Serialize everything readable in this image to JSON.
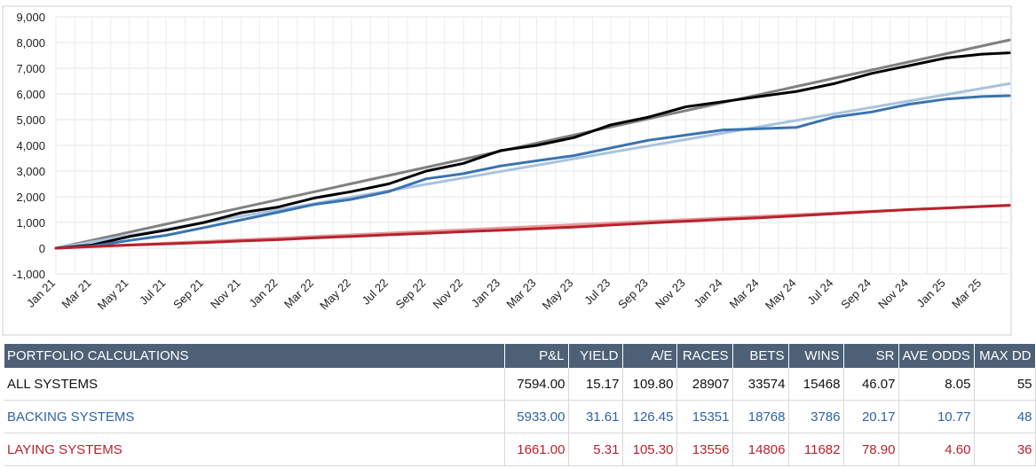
{
  "chart_data": {
    "type": "line",
    "title": "",
    "xlabel": "",
    "ylabel": "",
    "ylim": [
      -1000,
      9000
    ],
    "yticks": [
      -1000,
      0,
      1000,
      2000,
      3000,
      4000,
      5000,
      6000,
      7000,
      8000,
      9000
    ],
    "ytick_labels": [
      "-1,000",
      "0",
      "1,000",
      "2,000",
      "3,000",
      "4,000",
      "5,000",
      "6,000",
      "7,000",
      "8,000",
      "9,000"
    ],
    "xlim": [
      "2021-01-01",
      "2025-04-15"
    ],
    "xtick_labels": [
      "Jan 21",
      "Mar 21",
      "May 21",
      "Jul 21",
      "Sep 21",
      "Nov 21",
      "Jan 22",
      "Mar 22",
      "May 22",
      "Jul 22",
      "Sep 22",
      "Nov 22",
      "Jan 23",
      "Mar 23",
      "May 23",
      "Jul 23",
      "Sep 23",
      "Nov 23",
      "Jan 24",
      "Mar 24",
      "May 24",
      "Jul 24",
      "Sep 24",
      "Nov 24",
      "Jan 25",
      "Mar 25"
    ],
    "xtick_dates": [
      "2021-01-01",
      "2021-03-01",
      "2021-05-01",
      "2021-07-01",
      "2021-09-01",
      "2021-11-01",
      "2022-01-01",
      "2022-03-01",
      "2022-05-01",
      "2022-07-01",
      "2022-09-01",
      "2022-11-01",
      "2023-01-01",
      "2023-03-01",
      "2023-05-01",
      "2023-07-01",
      "2023-09-01",
      "2023-11-01",
      "2024-01-01",
      "2024-03-01",
      "2024-05-01",
      "2024-07-01",
      "2024-09-01",
      "2024-11-01",
      "2025-01-01",
      "2025-03-01"
    ],
    "grid": true,
    "legend": "none",
    "series": [
      {
        "color": "#808080",
        "role": "trend",
        "x": [
          "2021-01-01",
          "2025-04-15"
        ],
        "y": [
          0,
          8100
        ]
      },
      {
        "color": "#a9c3df",
        "role": "trend",
        "x": [
          "2021-01-01",
          "2025-04-15"
        ],
        "y": [
          0,
          6400
        ]
      },
      {
        "color": "#e59b9b",
        "role": "trend",
        "x": [
          "2021-01-01",
          "2025-04-15"
        ],
        "y": [
          0,
          1680
        ]
      },
      {
        "color": "#000000",
        "role": "actual",
        "x": [
          "2021-01-01",
          "2021-03-01",
          "2021-05-01",
          "2021-07-01",
          "2021-09-01",
          "2021-11-01",
          "2022-01-01",
          "2022-03-01",
          "2022-05-01",
          "2022-07-01",
          "2022-09-01",
          "2022-11-01",
          "2023-01-01",
          "2023-03-01",
          "2023-05-01",
          "2023-07-01",
          "2023-09-01",
          "2023-11-01",
          "2024-01-01",
          "2024-03-01",
          "2024-05-01",
          "2024-07-01",
          "2024-09-01",
          "2024-11-01",
          "2025-01-01",
          "2025-03-01",
          "2025-04-15"
        ],
        "y": [
          0,
          120,
          450,
          700,
          1000,
          1380,
          1600,
          1950,
          2200,
          2500,
          3000,
          3300,
          3800,
          4000,
          4300,
          4800,
          5100,
          5500,
          5700,
          5900,
          6100,
          6400,
          6800,
          7100,
          7400,
          7550,
          7600
        ]
      },
      {
        "color": "#3a73b0",
        "role": "actual",
        "x": [
          "2021-01-01",
          "2021-03-01",
          "2021-05-01",
          "2021-07-01",
          "2021-09-01",
          "2021-11-01",
          "2022-01-01",
          "2022-03-01",
          "2022-05-01",
          "2022-07-01",
          "2022-09-01",
          "2022-11-01",
          "2023-01-01",
          "2023-03-01",
          "2023-05-01",
          "2023-07-01",
          "2023-09-01",
          "2023-11-01",
          "2024-01-01",
          "2024-03-01",
          "2024-05-01",
          "2024-07-01",
          "2024-09-01",
          "2024-11-01",
          "2025-01-01",
          "2025-03-01",
          "2025-04-15"
        ],
        "y": [
          0,
          80,
          300,
          500,
          800,
          1100,
          1400,
          1700,
          1900,
          2200,
          2700,
          2900,
          3200,
          3400,
          3600,
          3900,
          4200,
          4400,
          4600,
          4650,
          4700,
          5100,
          5300,
          5600,
          5800,
          5900,
          5930
        ]
      },
      {
        "color": "#b8222d",
        "role": "actual",
        "x": [
          "2021-01-01",
          "2021-03-01",
          "2021-05-01",
          "2021-07-01",
          "2021-09-01",
          "2021-11-01",
          "2022-01-01",
          "2022-03-01",
          "2022-05-01",
          "2022-07-01",
          "2022-09-01",
          "2022-11-01",
          "2023-01-01",
          "2023-03-01",
          "2023-05-01",
          "2023-07-01",
          "2023-09-01",
          "2023-11-01",
          "2024-01-01",
          "2024-03-01",
          "2024-05-01",
          "2024-07-01",
          "2024-09-01",
          "2024-11-01",
          "2025-01-01",
          "2025-03-01",
          "2025-04-15"
        ],
        "y": [
          0,
          60,
          120,
          170,
          220,
          280,
          330,
          400,
          460,
          520,
          580,
          640,
          700,
          760,
          820,
          900,
          980,
          1050,
          1120,
          1180,
          1260,
          1340,
          1420,
          1500,
          1560,
          1620,
          1661
        ]
      }
    ]
  },
  "table": {
    "headers": [
      "PORTFOLIO CALCULATIONS",
      "P&L",
      "YIELD",
      "A/E",
      "RACES",
      "BETS",
      "WINS",
      "SR",
      "AVE ODDS",
      "MAX DD"
    ],
    "rows": [
      [
        "ALL SYSTEMS",
        "7594.00",
        "15.17",
        "109.80",
        "28907",
        "33574",
        "15468",
        "46.07",
        "8.05",
        "55"
      ],
      [
        "BACKING SYSTEMS",
        "5933.00",
        "31.61",
        "126.45",
        "15351",
        "18768",
        "3786",
        "20.17",
        "10.77",
        "48"
      ],
      [
        "LAYING SYSTEMS",
        "1661.00",
        "5.31",
        "105.30",
        "13556",
        "14806",
        "11682",
        "78.90",
        "4.60",
        "36"
      ]
    ]
  }
}
